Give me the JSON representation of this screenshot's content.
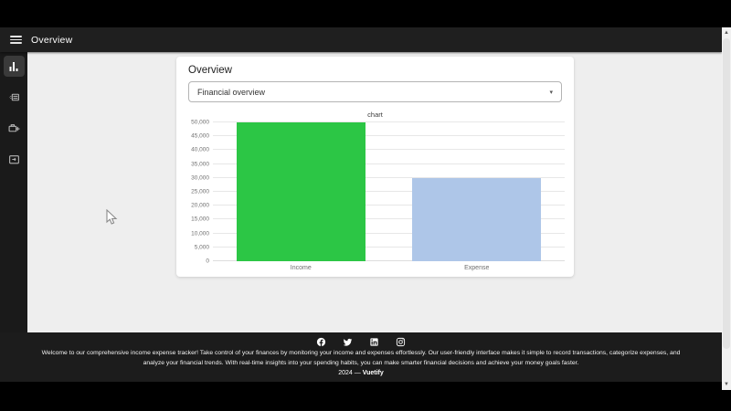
{
  "app_bar": {
    "title": "Overview"
  },
  "sidebar": {
    "items": [
      {
        "icon": "bar-chart-icon",
        "name": "overview",
        "active": true
      },
      {
        "icon": "cash-minus-icon",
        "name": "expenses",
        "active": false
      },
      {
        "icon": "briefcase-plus-icon",
        "name": "income",
        "active": false
      },
      {
        "icon": "transactions-icon",
        "name": "transactions",
        "active": false
      }
    ]
  },
  "card": {
    "title": "Overview",
    "select": {
      "value": "Financial overview",
      "caret": "▾"
    }
  },
  "chart_data": {
    "type": "bar",
    "title": "chart",
    "categories": [
      "Income",
      "Expense"
    ],
    "values": [
      50000,
      30000
    ],
    "bar_colors": [
      "#2cc645",
      "#aec6e8"
    ],
    "ylim": [
      0,
      50000
    ],
    "ytick_step": 5000,
    "grid": true,
    "legend": "none"
  },
  "footer": {
    "social_icons": [
      "facebook-icon",
      "twitter-icon",
      "linkedin-icon",
      "instagram-icon"
    ],
    "welcome_text": "Welcome to our comprehensive income expense tracker! Take control of your finances by monitoring your income and expenses effortlessly. Our user-friendly interface makes it simple to record transactions, categorize expenses, and analyze your financial trends. With real-time insights into your spending habits, you can make smarter financial decisions and achieve your money goals faster.",
    "copyright_year": "2024",
    "copyright_separator": "—",
    "brand": "Vuetify"
  },
  "scrollbar": {
    "up_arrow": "▲",
    "down_arrow": "▼"
  },
  "colors": {
    "app_bar_bg": "#1f1f1f",
    "sidebar_bg": "#1a1a1a",
    "content_bg": "#eeeeee",
    "footer_bg": "#1c1c1c",
    "income_bar": "#2cc645",
    "expense_bar": "#aec6e8"
  }
}
